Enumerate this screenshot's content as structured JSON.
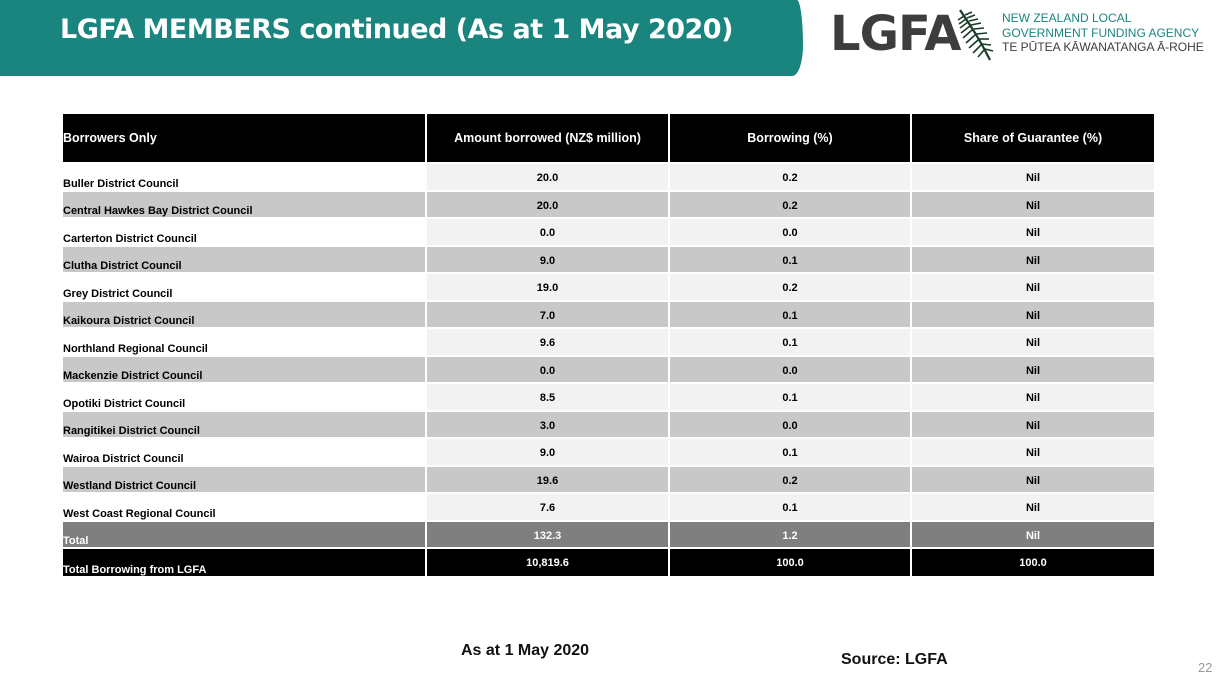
{
  "header": {
    "title": "LGFA MEMBERS continued (As at 1 May 2020)",
    "accent_color": "#1a857f"
  },
  "logo": {
    "wordmark": "LGFA",
    "agency_line1": "NEW ZEALAND LOCAL",
    "agency_line2": "GOVERNMENT FUNDING AGENCY",
    "agency_line3": "TE PŪTEA KĀWANATANGA Ā-ROHE",
    "icon": "fern-icon"
  },
  "table": {
    "columns": [
      "Borrowers Only",
      "Amount borrowed (NZ$ million)",
      "Borrowing (%)",
      "Share of Guarantee (%)"
    ],
    "rows": [
      {
        "name": "Buller District Council",
        "amount": "20.0",
        "borrowing": "0.2",
        "guarantee": "Nil"
      },
      {
        "name": "Central Hawkes Bay District Council",
        "amount": "20.0",
        "borrowing": "0.2",
        "guarantee": "Nil"
      },
      {
        "name": "Carterton District Council",
        "amount": "0.0",
        "borrowing": "0.0",
        "guarantee": "Nil"
      },
      {
        "name": "Clutha District Council",
        "amount": "9.0",
        "borrowing": "0.1",
        "guarantee": "Nil"
      },
      {
        "name": "Grey District Council",
        "amount": "19.0",
        "borrowing": "0.2",
        "guarantee": "Nil"
      },
      {
        "name": "Kaikoura District Council",
        "amount": "7.0",
        "borrowing": "0.1",
        "guarantee": "Nil"
      },
      {
        "name": "Northland Regional Council",
        "amount": "9.6",
        "borrowing": "0.1",
        "guarantee": "Nil"
      },
      {
        "name": "Mackenzie District Council",
        "amount": "0.0",
        "borrowing": "0.0",
        "guarantee": "Nil"
      },
      {
        "name": "Opotiki District Council",
        "amount": "8.5",
        "borrowing": "0.1",
        "guarantee": "Nil"
      },
      {
        "name": "Rangitikei District Council",
        "amount": "3.0",
        "borrowing": "0.0",
        "guarantee": "Nil"
      },
      {
        "name": "Wairoa District Council",
        "amount": "9.0",
        "borrowing": "0.1",
        "guarantee": "Nil"
      },
      {
        "name": "Westland District Council",
        "amount": "19.6",
        "borrowing": "0.2",
        "guarantee": "Nil"
      },
      {
        "name": "West Coast Regional Council",
        "amount": "7.6",
        "borrowing": "0.1",
        "guarantee": "Nil"
      }
    ],
    "total": {
      "name": "Total",
      "amount": "132.3",
      "borrowing": "1.2",
      "guarantee": "Nil"
    },
    "grand_total": {
      "name": "Total Borrowing from LGFA",
      "amount": "10,819.6",
      "borrowing": "100.0",
      "guarantee": "100.0"
    }
  },
  "footer": {
    "date_note": "As at 1 May 2020",
    "source": "Source: LGFA",
    "page_number": "22"
  }
}
